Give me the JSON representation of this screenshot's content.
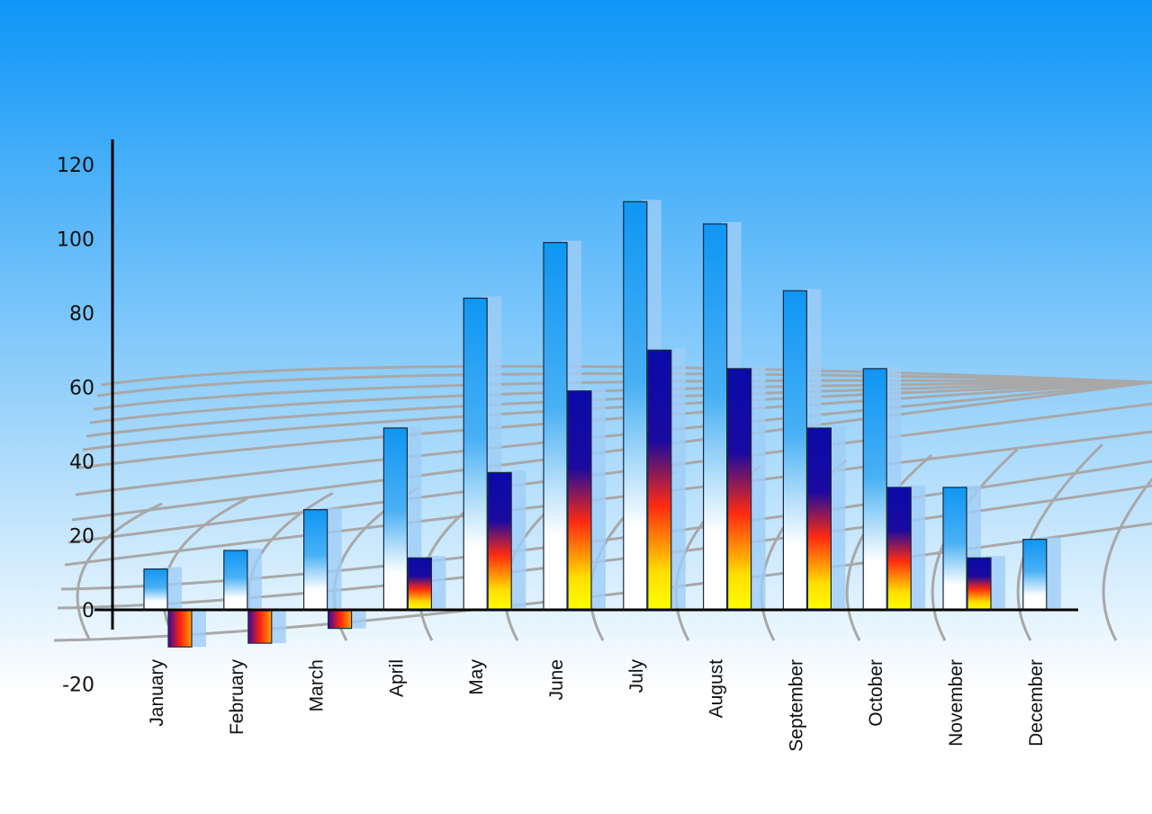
{
  "chart_data": {
    "type": "bar",
    "title": "",
    "xlabel": "",
    "ylabel": "",
    "categories": [
      "January",
      "February",
      "March",
      "April",
      "May",
      "June",
      "July",
      "August",
      "September",
      "October",
      "November",
      "December"
    ],
    "series": [
      {
        "values": [
          11,
          16,
          27,
          49,
          84,
          99,
          110,
          104,
          86,
          65,
          33,
          19
        ],
        "color": "#1a9cf5"
      },
      {
        "values": [
          -10,
          -9,
          -5,
          14,
          37,
          59,
          70,
          65,
          49,
          33,
          14,
          null
        ],
        "color": "#0a0aa8"
      }
    ],
    "ylim": [
      -20,
      125
    ],
    "yticks": [
      120,
      100,
      80,
      60,
      40,
      20,
      0,
      -20
    ],
    "grid": false,
    "legend": "none",
    "background": {
      "top": "#0d96f7",
      "bottom": "#ffffff"
    }
  }
}
